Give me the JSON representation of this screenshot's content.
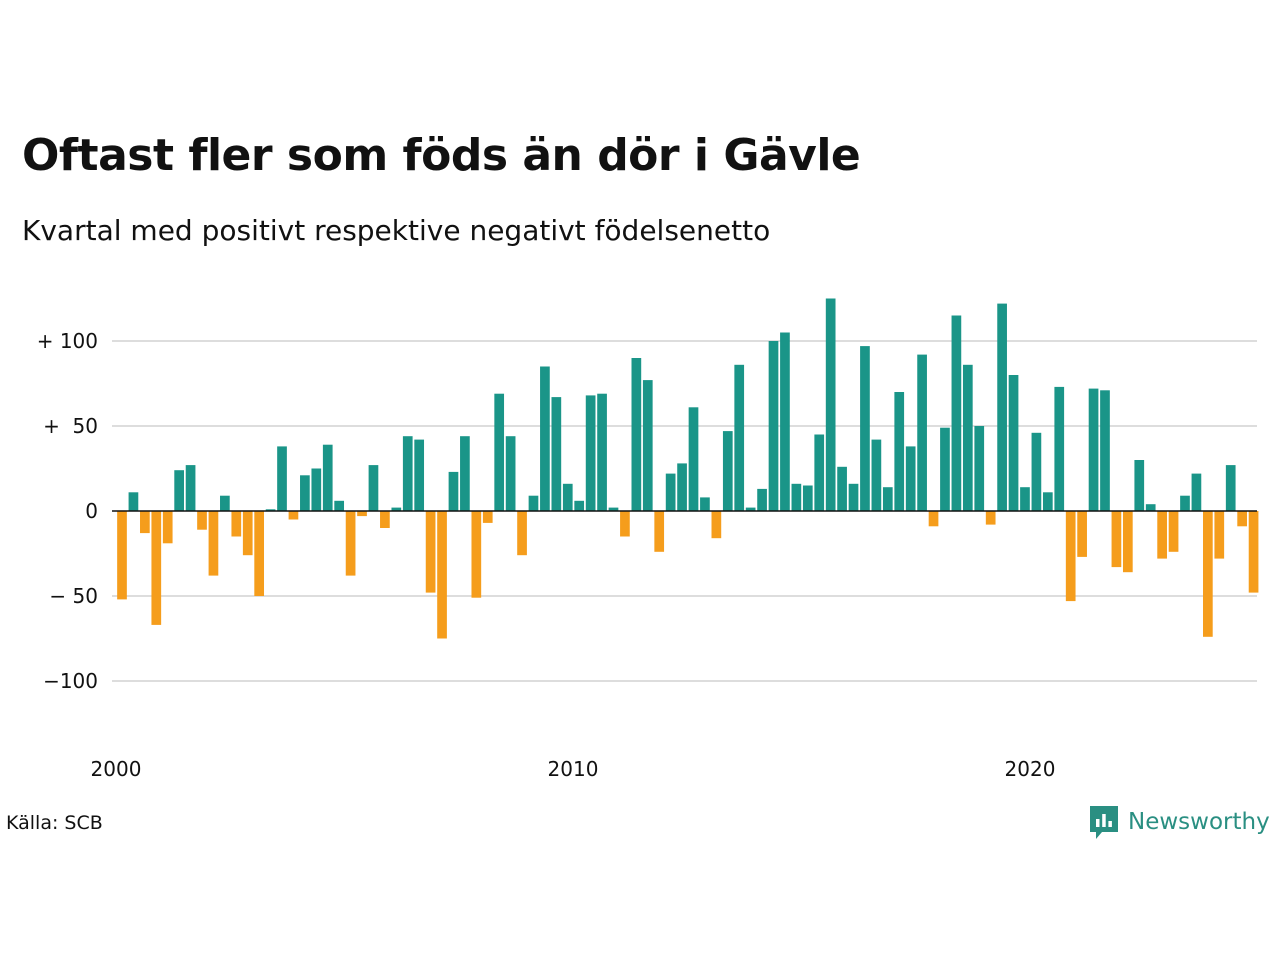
{
  "title": "Oftast fler som föds än dör i Gävle",
  "subtitle": "Kvartal med positivt respektive negativt födelsenetto",
  "source": "Källa: SCB",
  "brand": "Newsworthy",
  "colors": {
    "positive": "#1a9588",
    "negative": "#f59d1c",
    "grid": "#dddddd",
    "zero_line": "#111111",
    "brand": "#2a8f82"
  },
  "icons": {
    "brand": "newsworthy-logo-icon"
  },
  "chart_data": {
    "type": "bar",
    "title": "Oftast fler som föds än dör i Gävle",
    "subtitle": "Kvartal med positivt respektive negativt födelsenetto",
    "xlabel": "",
    "ylabel": "",
    "ylim": [
      -140,
      130
    ],
    "y_ticks": [
      100,
      50,
      0,
      -50,
      -100
    ],
    "y_tick_labels": [
      "+ 100",
      "+  50",
      "0",
      "− 50",
      "−100"
    ],
    "x_ticks": [
      2000,
      2010,
      2020
    ],
    "x_tick_labels": [
      "2000",
      "2010",
      "2020"
    ],
    "grid": true,
    "legend": "none",
    "x_start": "2000 Q1",
    "periods_per_year": 4,
    "values": [
      -52,
      11,
      -13,
      -67,
      -19,
      24,
      27,
      -11,
      -38,
      9,
      -15,
      -26,
      -50,
      1,
      38,
      -5,
      21,
      25,
      39,
      6,
      -38,
      -3,
      27,
      -10,
      2,
      44,
      42,
      -48,
      -75,
      23,
      44,
      -51,
      -7,
      69,
      44,
      -26,
      9,
      85,
      67,
      16,
      6,
      68,
      69,
      2,
      -15,
      90,
      77,
      -24,
      22,
      28,
      61,
      8,
      -16,
      47,
      86,
      2,
      13,
      100,
      105,
      16,
      15,
      45,
      125,
      26,
      16,
      97,
      42,
      14,
      70,
      38,
      92,
      -9,
      49,
      115,
      86,
      50,
      -8,
      122,
      80,
      14,
      46,
      11,
      73,
      -53,
      -27,
      72,
      71,
      -33,
      -36,
      30,
      4,
      -28,
      -24,
      9,
      22,
      -74,
      -28,
      27,
      -9,
      -48
    ]
  }
}
